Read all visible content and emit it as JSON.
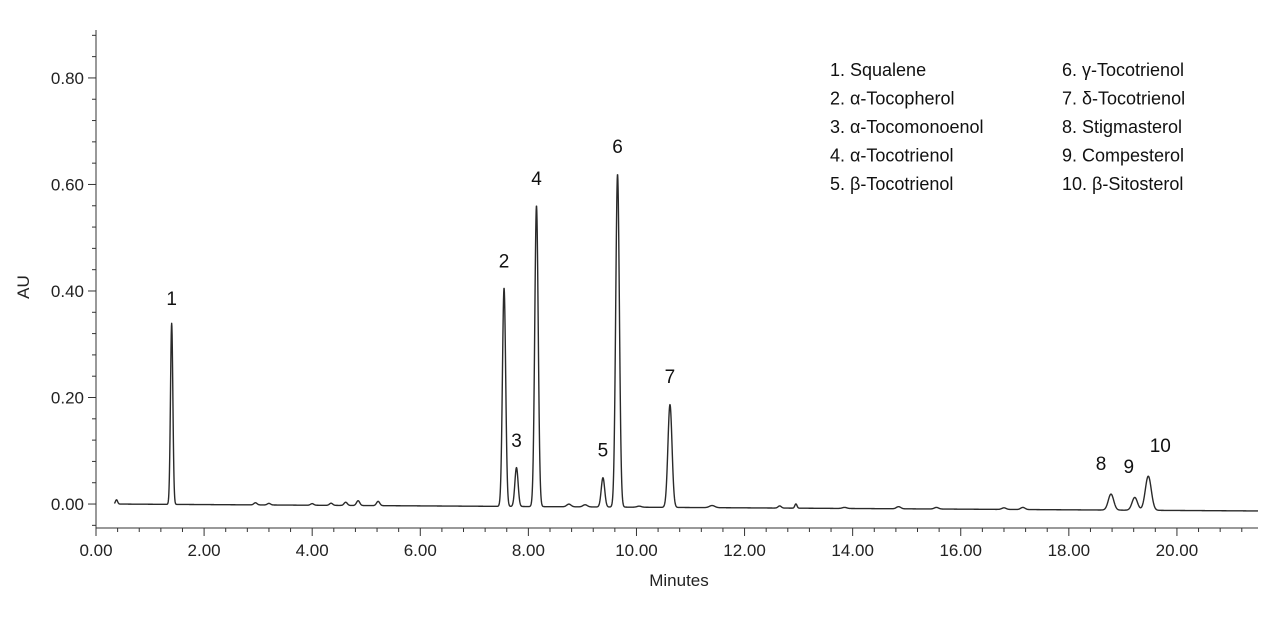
{
  "chart_data": {
    "type": "line",
    "title": "",
    "xlabel": "Minutes",
    "ylabel": "AU",
    "xlim": [
      0,
      21.5
    ],
    "ylim": [
      -0.045,
      0.89
    ],
    "x_ticks": [
      "0.00",
      "2.00",
      "4.00",
      "6.00",
      "8.00",
      "10.00",
      "12.00",
      "14.00",
      "16.00",
      "18.00",
      "20.00"
    ],
    "y_ticks": [
      "0.00",
      "0.20",
      "0.40",
      "0.60",
      "0.80"
    ],
    "grid": false,
    "legend_position": "top-right",
    "line_color": "#2a2a2a",
    "baseline": {
      "start": 0.0,
      "end": -0.013
    },
    "peaks": [
      {
        "label": "1",
        "rt": 1.4,
        "height": 0.34,
        "width": 0.022
      },
      {
        "label": "2",
        "rt": 7.55,
        "height": 0.41,
        "width": 0.03
      },
      {
        "label": "3",
        "rt": 7.78,
        "height": 0.073,
        "width": 0.03
      },
      {
        "label": "4",
        "rt": 8.15,
        "height": 0.565,
        "width": 0.032
      },
      {
        "label": "5",
        "rt": 9.38,
        "height": 0.055,
        "width": 0.032
      },
      {
        "label": "6",
        "rt": 9.65,
        "height": 0.625,
        "width": 0.034
      },
      {
        "label": "7",
        "rt": 10.62,
        "height": 0.193,
        "width": 0.038
      },
      {
        "label": "8",
        "rt": 18.78,
        "height": 0.03,
        "width": 0.05
      },
      {
        "label": "9",
        "rt": 19.22,
        "height": 0.024,
        "width": 0.05
      },
      {
        "label": "10",
        "rt": 19.47,
        "height": 0.064,
        "width": 0.055
      }
    ],
    "minor_peaks": [
      {
        "rt": 0.38,
        "height": 0.008,
        "width": 0.02
      },
      {
        "rt": 2.95,
        "height": 0.004,
        "width": 0.03
      },
      {
        "rt": 3.2,
        "height": 0.003,
        "width": 0.03
      },
      {
        "rt": 4.0,
        "height": 0.003,
        "width": 0.03
      },
      {
        "rt": 4.35,
        "height": 0.004,
        "width": 0.03
      },
      {
        "rt": 4.62,
        "height": 0.006,
        "width": 0.03
      },
      {
        "rt": 4.85,
        "height": 0.009,
        "width": 0.03
      },
      {
        "rt": 5.22,
        "height": 0.008,
        "width": 0.03
      },
      {
        "rt": 8.75,
        "height": 0.005,
        "width": 0.04
      },
      {
        "rt": 9.05,
        "height": 0.004,
        "width": 0.04
      },
      {
        "rt": 10.05,
        "height": 0.002,
        "width": 0.04
      },
      {
        "rt": 11.4,
        "height": 0.004,
        "width": 0.05
      },
      {
        "rt": 12.65,
        "height": 0.004,
        "width": 0.03
      },
      {
        "rt": 12.95,
        "height": 0.008,
        "width": 0.02
      },
      {
        "rt": 13.85,
        "height": 0.002,
        "width": 0.04
      },
      {
        "rt": 14.85,
        "height": 0.004,
        "width": 0.04
      },
      {
        "rt": 15.55,
        "height": 0.003,
        "width": 0.04
      },
      {
        "rt": 16.8,
        "height": 0.003,
        "width": 0.04
      },
      {
        "rt": 17.15,
        "height": 0.004,
        "width": 0.04
      }
    ],
    "legend": [
      [
        "1. Squalene",
        "2. α-Tocopherol",
        "3. α-Tocomonoenol",
        "4. α-Tocotrienol",
        "5. β-Tocotrienol"
      ],
      [
        "6. γ-Tocotrienol",
        "7. δ-Tocotrienol",
        "8. Stigmasterol",
        "9. Compesterol",
        "10. β-Sitosterol"
      ]
    ]
  }
}
